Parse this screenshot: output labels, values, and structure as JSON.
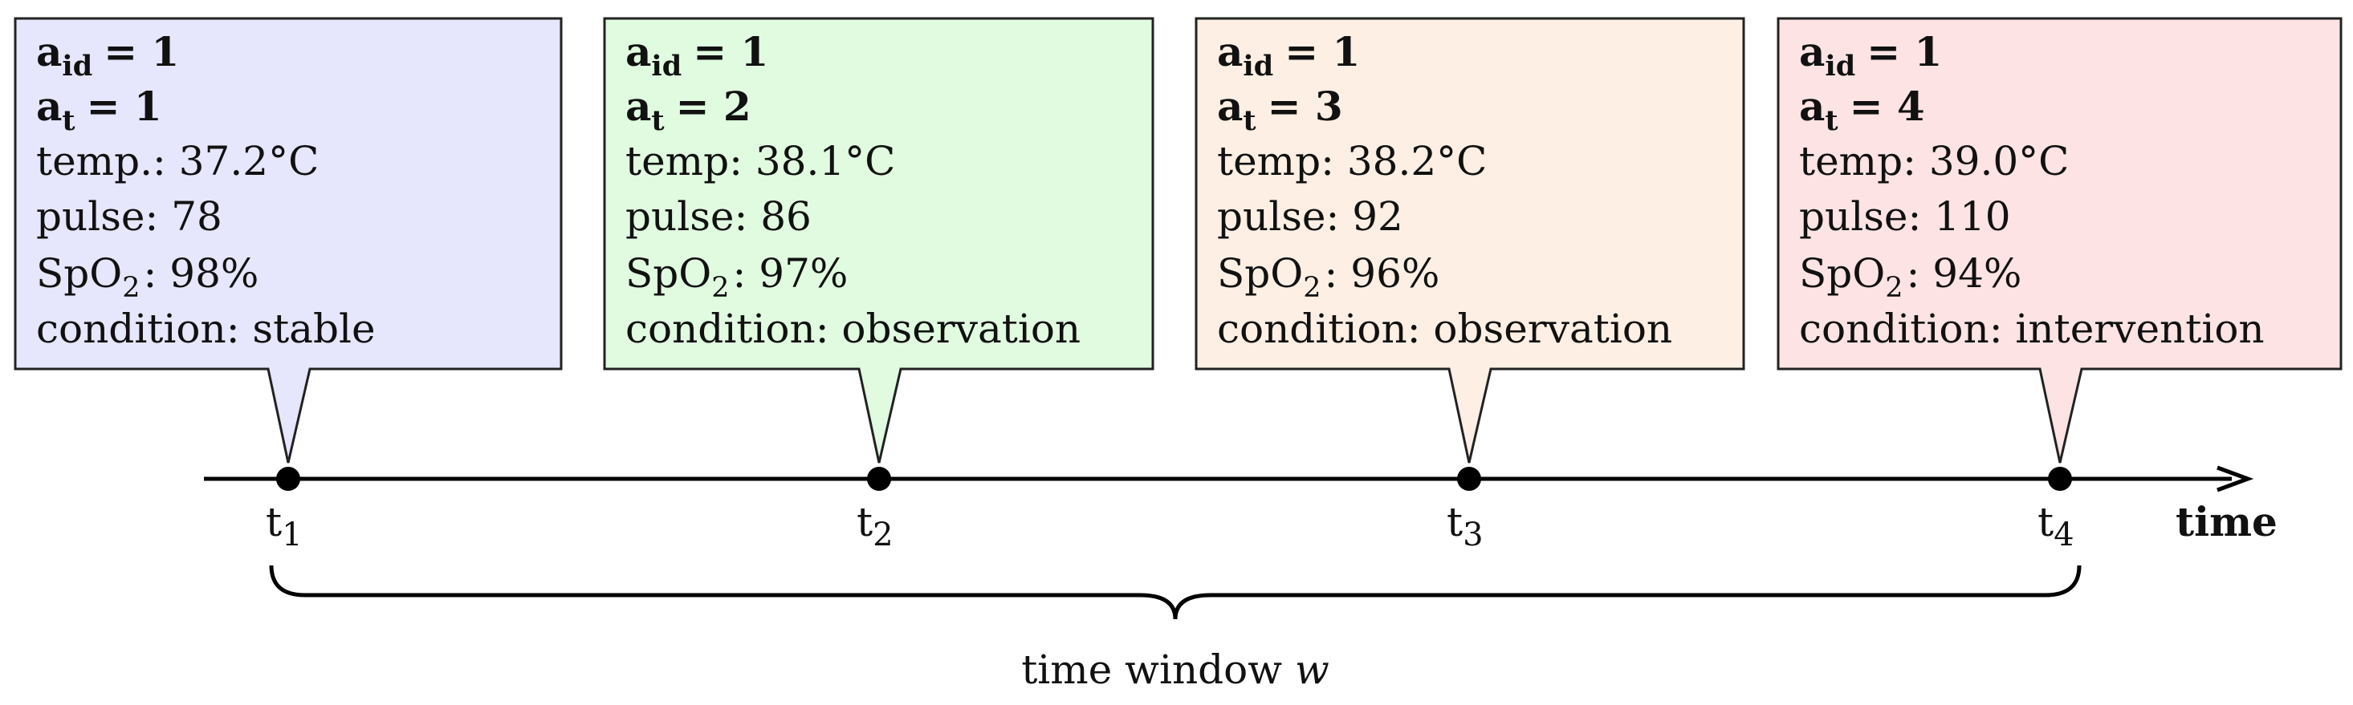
{
  "events": [
    {
      "id": {
        "base": "a",
        "sub": "id",
        "rest": "= 1"
      },
      "t": {
        "base": "a",
        "sub": "t",
        "rest": "= 1"
      },
      "temp": "temp.: 37.2°C",
      "pulse": "pulse: 78",
      "spo2": {
        "base": "SpO",
        "sub": "2",
        "rest": ": 98%"
      },
      "condition": "condition: stable",
      "tick": {
        "base": "t",
        "sub": "1"
      }
    },
    {
      "id": {
        "base": "a",
        "sub": "id",
        "rest": "= 1"
      },
      "t": {
        "base": "a",
        "sub": "t",
        "rest": "= 2"
      },
      "temp": "temp: 38.1°C",
      "pulse": "pulse: 86",
      "spo2": {
        "base": "SpO",
        "sub": "2",
        "rest": ": 97%"
      },
      "condition": "condition: observation",
      "tick": {
        "base": "t",
        "sub": "2"
      }
    },
    {
      "id": {
        "base": "a",
        "sub": "id",
        "rest": "= 1"
      },
      "t": {
        "base": "a",
        "sub": "t",
        "rest": "= 3"
      },
      "temp": "temp: 38.2°C",
      "pulse": "pulse: 92",
      "spo2": {
        "base": "SpO",
        "sub": "2",
        "rest": ": 96%"
      },
      "condition": "condition: observation",
      "tick": {
        "base": "t",
        "sub": "3"
      }
    },
    {
      "id": {
        "base": "a",
        "sub": "id",
        "rest": "= 1"
      },
      "t": {
        "base": "a",
        "sub": "t",
        "rest": "= 4"
      },
      "temp": "temp: 39.0°C",
      "pulse": "pulse: 110",
      "spo2": {
        "base": "SpO",
        "sub": "2",
        "rest": ": 94%"
      },
      "condition": "condition: intervention",
      "tick": {
        "base": "t",
        "sub": "4"
      }
    }
  ],
  "axis_label": "time",
  "window_label": {
    "text": "time window",
    "var": "w"
  }
}
